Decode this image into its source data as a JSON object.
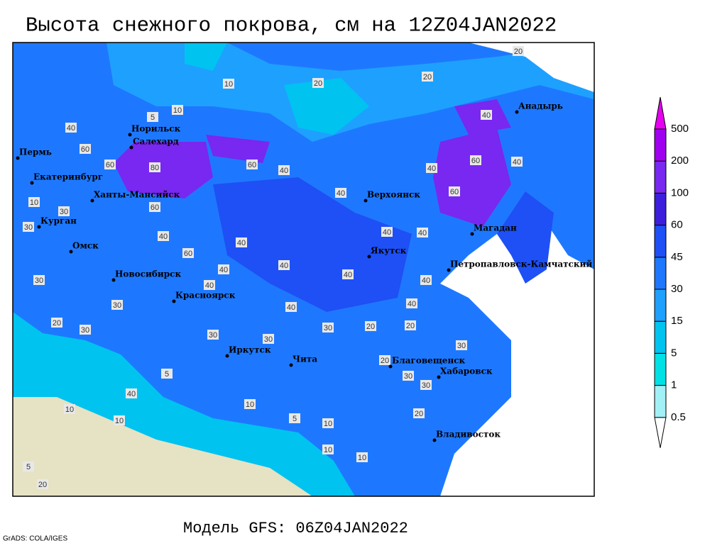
{
  "title": "Высота снежного покрова, см на 12Z04JAN2022",
  "footer": "Модель GFS: 06Z04JAN2022",
  "credit": "GrADS: COLA/IGES",
  "cities": [
    "Норильск",
    "Салехард",
    "Пермь",
    "Екатеринбург",
    "Ханты-Мансийск",
    "Курган",
    "Омск",
    "Новосибирск",
    "Красноярск",
    "Иркутск",
    "Чита",
    "Верхоянск",
    "Якутск",
    "Магадан",
    "Анадырь",
    "Петропавловск-Камчатский",
    "Благовещенск",
    "Хабаровск",
    "Владивосток"
  ],
  "legend": {
    "levels": [
      0.5,
      1,
      5,
      15,
      30,
      45,
      60,
      100,
      200,
      500
    ],
    "colors": [
      "#ffffff",
      "#a0f0f5",
      "#00e1e6",
      "#00c3f0",
      "#1ea0ff",
      "#1e78ff",
      "#1e50f5",
      "#3c1edc",
      "#7828f0",
      "#a000f0",
      "#e600f0"
    ]
  },
  "contour_labels": [
    20,
    20,
    10,
    10,
    5,
    40,
    60,
    60,
    80,
    60,
    40,
    40,
    40,
    60,
    40,
    60,
    40,
    20,
    60,
    40,
    60,
    40,
    40,
    40,
    40,
    40,
    40,
    40,
    40,
    20,
    30,
    20,
    30,
    30,
    30,
    20,
    30,
    30,
    40,
    5,
    10,
    5,
    10,
    10,
    10,
    20,
    20,
    30,
    30,
    30,
    20,
    10,
    10,
    5,
    30,
    10,
    30,
    40,
    40
  ]
}
